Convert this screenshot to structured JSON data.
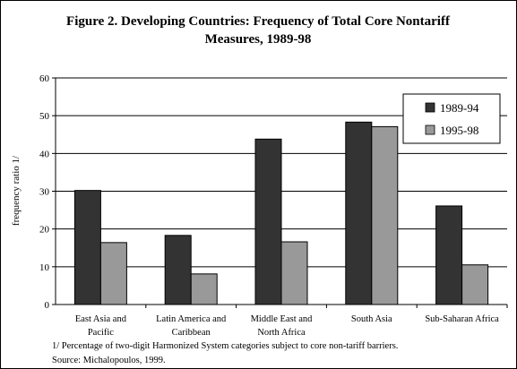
{
  "chart_data": {
    "type": "bar",
    "title": "Figure 2. Developing Countries: Frequency of Total Core Nontariff",
    "title_line2": "Measures, 1989-98",
    "ylabel": "frequency ratio 1/",
    "xlabel": "",
    "ylim": [
      0,
      60
    ],
    "yticks": [
      "0",
      "10",
      "20",
      "30",
      "40",
      "50",
      "60"
    ],
    "categories": [
      [
        "East Asia and",
        "Pacific"
      ],
      [
        "Latin America and",
        "Caribbean"
      ],
      [
        "Middle East and",
        "North Africa"
      ],
      [
        "South Asia"
      ],
      [
        "Sub-Saharan Africa"
      ]
    ],
    "series": [
      {
        "name": "1989-94",
        "color": "#333333",
        "values": [
          30.2,
          18.3,
          43.8,
          48.3,
          26.1
        ]
      },
      {
        "name": "1995-98",
        "color": "#999999",
        "values": [
          16.4,
          8.1,
          16.6,
          47.1,
          10.5
        ]
      }
    ],
    "grid": true,
    "legend_position": "top-right",
    "footnote": "1/ Percentage of two-digit Harmonized System categories subject to core non-tariff barriers.",
    "source": "Source: Michalopoulos, 1999."
  }
}
